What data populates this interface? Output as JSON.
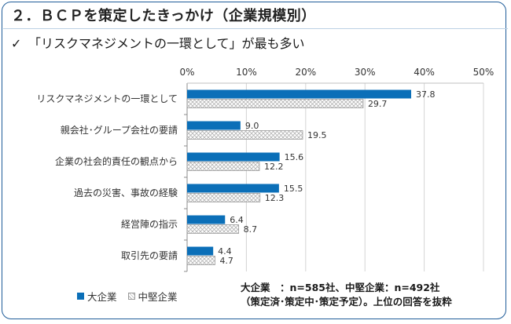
{
  "header": {
    "title": "２．ＢＣＰを策定したきっかけ（企業規模別）",
    "subtitle_check": "✓",
    "subtitle": "「リスクマネジメントの一環として」が最も多い"
  },
  "chart_data": {
    "type": "bar",
    "orientation": "horizontal",
    "categories": [
      "リスクマネジメントの一環として",
      "親会社･グループ会社の要請",
      "企業の社会的責任の観点から",
      "過去の災害、事故の経験",
      "経営陣の指示",
      "取引先の要請"
    ],
    "series": [
      {
        "name": "大企業",
        "values": [
          37.8,
          9.0,
          15.6,
          15.5,
          6.4,
          4.4
        ],
        "labels": [
          "37.8",
          "9.0",
          "15.6",
          "15.5",
          "6.4",
          "4.4"
        ]
      },
      {
        "name": "中堅企業",
        "values": [
          29.7,
          19.5,
          12.2,
          12.3,
          8.7,
          4.7
        ],
        "labels": [
          "29.7",
          "19.5",
          "12.2",
          "12.3",
          "8.7",
          "4.7"
        ]
      }
    ],
    "x_ticks": [
      "0%",
      "10%",
      "20%",
      "30%",
      "40%",
      "50%"
    ],
    "xlim": [
      0,
      50
    ],
    "grid": true,
    "legend_position": "bottom-left",
    "colors": {
      "大企業": "#0b6fb8",
      "中堅企業": "hatched-gray"
    }
  },
  "legend": {
    "large_label": "大企業",
    "mid_label": "中堅企業"
  },
  "note": {
    "line1": "大企業　：n=585社、中堅企業：n=492社",
    "line2": "（策定済･策定中･策定予定）。上位の回答を抜粋"
  }
}
